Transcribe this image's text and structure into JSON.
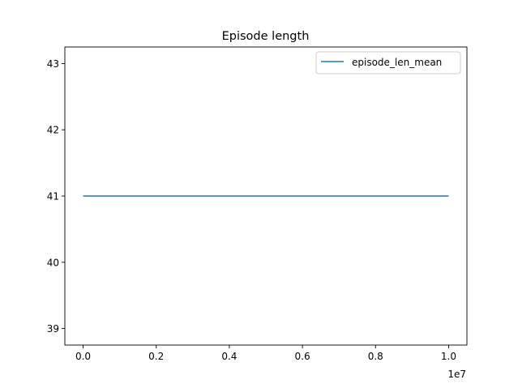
{
  "chart_data": {
    "type": "line",
    "title": "Episode length",
    "xlabel": "",
    "ylabel": "",
    "x_offset_label": "1e7",
    "xlim": [
      -0.05,
      1.05
    ],
    "ylim": [
      38.75,
      43.25
    ],
    "xticks": [
      0.0,
      0.2,
      0.4,
      0.6,
      0.8,
      1.0
    ],
    "xtick_labels": [
      "0.0",
      "0.2",
      "0.4",
      "0.6",
      "0.8",
      "1.0"
    ],
    "yticks": [
      39,
      40,
      41,
      42,
      43
    ],
    "ytick_labels": [
      "39",
      "40",
      "41",
      "42",
      "43"
    ],
    "grid": false,
    "legend_position": "upper right",
    "series": [
      {
        "name": "episode_len_mean",
        "color": "#1f77b4",
        "x": [
          0.0,
          1.0
        ],
        "y": [
          41,
          41
        ]
      }
    ]
  }
}
